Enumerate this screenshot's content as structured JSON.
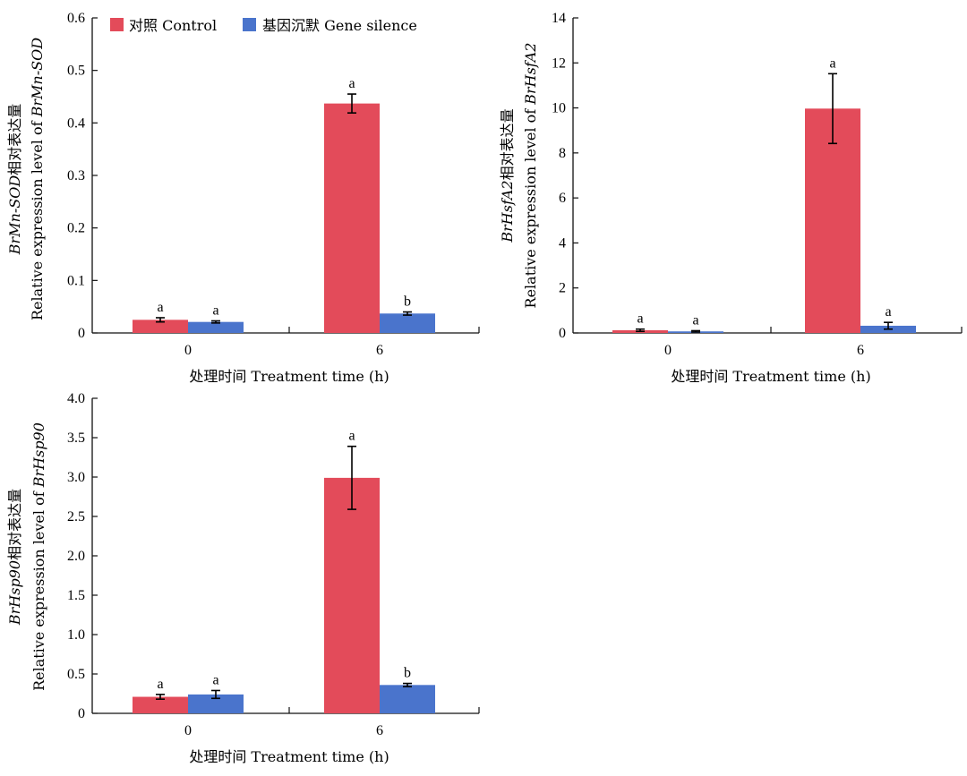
{
  "colors": {
    "control": "#e34b5a",
    "silence": "#4a74cc",
    "axis": "#111111"
  },
  "legend": [
    {
      "label": "对照 Control",
      "color": "#e34b5a"
    },
    {
      "label": "基因沉默 Gene silence",
      "color": "#4a74cc"
    }
  ],
  "chart_data": [
    {
      "type": "bar",
      "categories": [
        "0",
        "6"
      ],
      "series": [
        {
          "name": "对照 Control",
          "values": [
            0.025,
            0.437
          ],
          "errors": [
            0.004,
            0.018
          ],
          "sig": [
            "a",
            "a"
          ]
        },
        {
          "name": "基因沉默 Gene silence",
          "values": [
            0.021,
            0.037
          ],
          "errors": [
            0.002,
            0.003
          ],
          "sig": [
            "a",
            "b"
          ]
        }
      ],
      "xlabel": "处理时间 Treatment time (h)",
      "ylabel_italic": "BrMn-SOD",
      "ylabel_cn": "相对表达量",
      "ylabel_en": "Relative expression level of ",
      "ylim": [
        0,
        0.6
      ],
      "yticks": [
        "0",
        "0.1",
        "0.2",
        "0.3",
        "0.4",
        "0.5",
        "0.6"
      ],
      "ytick_values": [
        0,
        0.1,
        0.2,
        0.3,
        0.4,
        0.5,
        0.6
      ]
    },
    {
      "type": "bar",
      "categories": [
        "0",
        "6"
      ],
      "series": [
        {
          "name": "对照 Control",
          "values": [
            0.12,
            9.97
          ],
          "errors": [
            0.05,
            1.55
          ],
          "sig": [
            "a",
            "a"
          ]
        },
        {
          "name": "基因沉默 Gene silence",
          "values": [
            0.07,
            0.32
          ],
          "errors": [
            0.03,
            0.15
          ],
          "sig": [
            "a",
            "a"
          ]
        }
      ],
      "xlabel": "处理时间 Treatment time (h)",
      "ylabel_italic": "BrHsfA2",
      "ylabel_cn": "相对表达量",
      "ylabel_en": "Relative expression level of ",
      "ylim": [
        0,
        14
      ],
      "yticks": [
        "0",
        "2",
        "4",
        "6",
        "8",
        "10",
        "12",
        "14"
      ],
      "ytick_values": [
        0,
        2,
        4,
        6,
        8,
        10,
        12,
        14
      ]
    },
    {
      "type": "bar",
      "categories": [
        "0",
        "6"
      ],
      "series": [
        {
          "name": "对照 Control",
          "values": [
            0.21,
            2.99
          ],
          "errors": [
            0.03,
            0.4
          ],
          "sig": [
            "a",
            "a"
          ]
        },
        {
          "name": "基因沉默 Gene silence",
          "values": [
            0.24,
            0.36
          ],
          "errors": [
            0.05,
            0.02
          ],
          "sig": [
            "a",
            "b"
          ]
        }
      ],
      "xlabel": "处理时间 Treatment time (h)",
      "ylabel_italic": "BrHsp90",
      "ylabel_cn": "相对表达量",
      "ylabel_en": "Relative expression level of ",
      "ylim": [
        0,
        4
      ],
      "yticks": [
        "0",
        "0.5",
        "1.0",
        "1.5",
        "2.0",
        "2.5",
        "3.0",
        "3.5",
        "4.0"
      ],
      "ytick_values": [
        0,
        0.5,
        1.0,
        1.5,
        2.0,
        2.5,
        3.0,
        3.5,
        4.0
      ]
    }
  ]
}
